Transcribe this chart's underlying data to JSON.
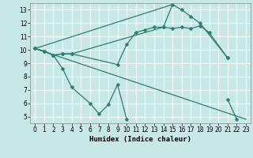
{
  "xlabel": "Humidex (Indice chaleur)",
  "bg_color": "#c8e8e8",
  "grid_color": "#ffffff",
  "line_color": "#2e7d6e",
  "xlim": [
    -0.5,
    23.5
  ],
  "ylim": [
    4.5,
    13.5
  ],
  "yticks": [
    5,
    6,
    7,
    8,
    9,
    10,
    11,
    12,
    13
  ],
  "xticks": [
    0,
    1,
    2,
    3,
    4,
    5,
    6,
    7,
    8,
    9,
    10,
    11,
    12,
    13,
    14,
    15,
    16,
    17,
    18,
    19,
    20,
    21,
    22,
    23
  ],
  "line_zigzag": {
    "x": [
      0,
      1,
      2,
      3,
      4,
      6,
      7,
      8,
      9,
      10,
      21,
      22
    ],
    "y": [
      10.1,
      9.9,
      9.6,
      8.6,
      7.2,
      6.0,
      5.2,
      5.9,
      7.4,
      4.8,
      6.3,
      4.8
    ]
  },
  "line_mid": {
    "x": [
      0,
      1,
      2,
      3,
      4,
      9,
      10,
      11,
      12,
      13,
      14,
      15,
      16,
      17,
      18,
      19,
      21
    ],
    "y": [
      10.1,
      9.9,
      9.6,
      9.7,
      9.7,
      8.9,
      10.4,
      11.3,
      11.5,
      11.7,
      11.7,
      11.6,
      11.7,
      11.6,
      11.8,
      11.3,
      9.4
    ]
  },
  "line_peak": {
    "x": [
      0,
      1,
      2,
      3,
      4,
      14,
      15,
      16,
      17,
      18,
      21
    ],
    "y": [
      10.1,
      9.9,
      9.6,
      9.7,
      9.7,
      11.7,
      13.4,
      13.0,
      12.5,
      12.0,
      9.4
    ]
  },
  "tri_bottom": {
    "x": [
      0,
      23
    ],
    "y": [
      10.1,
      4.8
    ]
  },
  "tri_top": {
    "x": [
      0,
      15
    ],
    "y": [
      10.1,
      13.4
    ]
  }
}
